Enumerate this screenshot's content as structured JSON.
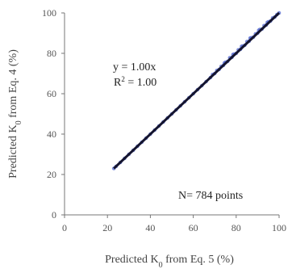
{
  "chart_data": {
    "type": "scatter",
    "xlabel": "Predicted K",
    "xlabel_sub": "0",
    "xlabel_suffix": " from Eq. 5 (%)",
    "ylabel": "Predicted K",
    "ylabel_sub": "0",
    "ylabel_suffix": " from Eq. 4 (%)",
    "xlim": [
      0,
      100
    ],
    "ylim": [
      0,
      100
    ],
    "xticks": [
      0,
      20,
      40,
      60,
      80,
      100
    ],
    "yticks": [
      0,
      20,
      40,
      60,
      80,
      100
    ],
    "xtick_labels": [
      "0",
      "20",
      "40",
      "60",
      "80",
      "100"
    ],
    "ytick_labels": [
      "0",
      "20",
      "40",
      "60",
      "80",
      "100"
    ],
    "grid": false,
    "annotations": {
      "equation": "y = 1.00x",
      "r2_base": "R",
      "r2_sup": "2",
      "r2_value": " = 1.00",
      "count": "N= 784 points"
    },
    "fit_line": {
      "x": [
        23,
        100
      ],
      "y": [
        23,
        100
      ]
    },
    "series": [
      {
        "points": [
          [
            23,
            23
          ],
          [
            24,
            24
          ],
          [
            26,
            26
          ],
          [
            28,
            28
          ],
          [
            30,
            30
          ],
          [
            32,
            32
          ],
          [
            34,
            34
          ],
          [
            36,
            36
          ],
          [
            38,
            38
          ],
          [
            40,
            40
          ],
          [
            42,
            42
          ],
          [
            44,
            44
          ],
          [
            46,
            46
          ],
          [
            48,
            48
          ],
          [
            50,
            50
          ],
          [
            52,
            52
          ],
          [
            54,
            54
          ],
          [
            56,
            56
          ],
          [
            58,
            58
          ],
          [
            60,
            60
          ],
          [
            62,
            62
          ],
          [
            64,
            64
          ],
          [
            66,
            66
          ],
          [
            68,
            68
          ],
          [
            69,
            69.5
          ],
          [
            70,
            70
          ],
          [
            71,
            71.5
          ],
          [
            72,
            72
          ],
          [
            73,
            73.5
          ],
          [
            74,
            74
          ],
          [
            75,
            75.6
          ],
          [
            76,
            76
          ],
          [
            77,
            77.8
          ],
          [
            78,
            78
          ],
          [
            79,
            79.6
          ],
          [
            80,
            80
          ],
          [
            81,
            81.7
          ],
          [
            82,
            82
          ],
          [
            83,
            83.6
          ],
          [
            84,
            84
          ],
          [
            85,
            85.8
          ],
          [
            86,
            86
          ],
          [
            87,
            87.7
          ],
          [
            88,
            88
          ],
          [
            89,
            89.6
          ],
          [
            90,
            90
          ],
          [
            91,
            91.8
          ],
          [
            92,
            92
          ],
          [
            93,
            93.7
          ],
          [
            94,
            94
          ],
          [
            95,
            95.6
          ],
          [
            96,
            96
          ],
          [
            97,
            97.5
          ],
          [
            98,
            98
          ],
          [
            99,
            99.2
          ],
          [
            100,
            100
          ],
          [
            74.5,
            75.2
          ],
          [
            78.5,
            79.4
          ],
          [
            82.5,
            83.4
          ],
          [
            86.5,
            87.5
          ],
          [
            90.5,
            91.4
          ],
          [
            94.5,
            95.3
          ]
        ]
      }
    ],
    "colors": {
      "points": "#5b6fd0",
      "line": "#14142e",
      "axis": "#777777"
    }
  }
}
